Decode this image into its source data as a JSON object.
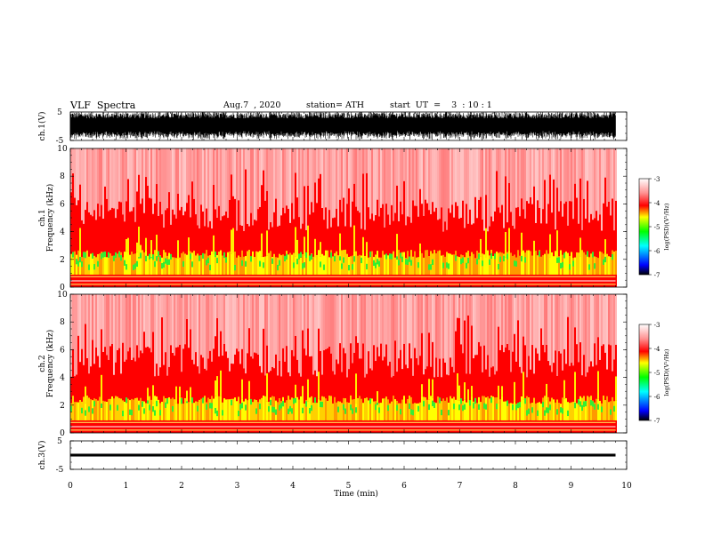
{
  "header": {
    "title": "VLF  Spectra",
    "date": "Aug.7  , 2020",
    "station": "station= ATH",
    "start_ut": "start  UT  =    3  : 10 : 1"
  },
  "chart_data": [
    {
      "type": "line",
      "name": "ch1-waveform",
      "ylabel": "ch.1(V)",
      "yticks": [
        "5",
        "-5"
      ],
      "ylim": [
        -5,
        5
      ],
      "xlim": [
        0,
        10
      ],
      "data_end_min": 9.8,
      "amplitude_v": 5
    },
    {
      "type": "heatmap",
      "name": "ch1-spectrogram",
      "ylabel_line1": "ch.1",
      "ylabel_line2": "Frequency  (kHz)",
      "yticks": [
        "0",
        "2",
        "4",
        "6",
        "8",
        "10"
      ],
      "ylim": [
        0,
        10
      ],
      "xlim": [
        0,
        10
      ],
      "data_end_min": 9.8,
      "colorbar": {
        "label": "log(PSD)(V²/Hz)",
        "ticks": [
          "-3",
          "-4",
          "-5",
          "-6",
          "-7"
        ],
        "range": [
          -7,
          -3
        ]
      },
      "colors": {
        "high": "#ff0000",
        "mid": "#ffff00",
        "low": "#00ff00",
        "background": "#ffffff"
      }
    },
    {
      "type": "heatmap",
      "name": "ch2-spectrogram",
      "ylabel_line1": "ch.2",
      "ylabel_line2": "Frequency  (kHz)",
      "yticks": [
        "0",
        "2",
        "4",
        "6",
        "8",
        "10"
      ],
      "ylim": [
        0,
        10
      ],
      "xlim": [
        0,
        10
      ],
      "data_end_min": 9.8,
      "colorbar": {
        "label": "log(PSD)(V²/Hz)",
        "ticks": [
          "-3",
          "-4",
          "-5",
          "-6",
          "-7"
        ],
        "range": [
          -7,
          -3
        ]
      },
      "colors": {
        "high": "#ff0000",
        "mid": "#ffff00",
        "low": "#00ff00",
        "background": "#ffffff"
      }
    },
    {
      "type": "line",
      "name": "ch3-waveform",
      "ylabel": "ch.3(V)",
      "yticks": [
        "5",
        "-5"
      ],
      "ylim": [
        -5,
        5
      ],
      "xlim": [
        0,
        10
      ],
      "data_end_min": 9.8,
      "amplitude_v": 0.3
    }
  ],
  "xaxis": {
    "label": "Time  (min)",
    "ticks": [
      "0",
      "1",
      "2",
      "3",
      "4",
      "5",
      "6",
      "7",
      "8",
      "9",
      "10"
    ]
  }
}
